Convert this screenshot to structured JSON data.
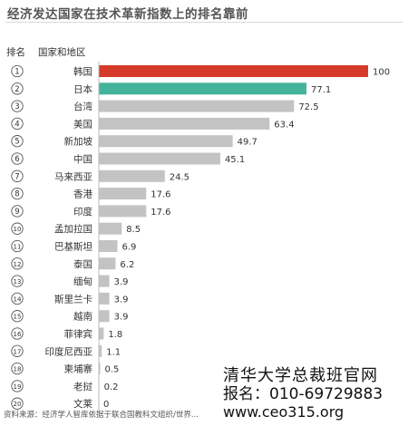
{
  "title": "经济发达国家在技术革新指数上的排名靠前",
  "column_headers": {
    "rank": "排名",
    "country": "国家和地区"
  },
  "footer": "资料来源：经济学人智库依据于联合国教科文组织/世界...",
  "watermark": {
    "line1": "清华大学总裁班官网",
    "line2": "报名：010-69729883",
    "line3": "www.ceo315.org"
  },
  "colors": {
    "first": "#d53a2a",
    "second": "#44b39b",
    "rest": "#c3c3c3"
  },
  "chart_data": {
    "type": "bar",
    "orientation": "horizontal",
    "title": "经济发达国家在技术革新指数上的排名靠前",
    "categories": [
      "韩国",
      "日本",
      "台湾",
      "美国",
      "新加坡",
      "中国",
      "马来西亚",
      "香港",
      "印度",
      "孟加拉国",
      "巴基斯坦",
      "泰国",
      "缅甸",
      "斯里兰卡",
      "越南",
      "菲律宾",
      "印度尼西亚",
      "柬埔寨",
      "老挝",
      "文莱"
    ],
    "ranks": [
      "1",
      "2",
      "3",
      "4",
      "5",
      "6",
      "7",
      "8",
      "9",
      "10",
      "11",
      "12",
      "13",
      "14",
      "15",
      "16",
      "17",
      "18",
      "19",
      "20"
    ],
    "values": [
      100,
      77.1,
      72.5,
      63.4,
      49.7,
      45.1,
      24.5,
      17.6,
      17.6,
      8.5,
      6.9,
      6.2,
      3.9,
      3.9,
      3.9,
      1.8,
      1.1,
      0.5,
      0.2,
      0
    ],
    "value_labels": [
      "100",
      "77.1",
      "72.5",
      "63.4",
      "49.7",
      "45.1",
      "24.5",
      "17.6",
      "17.6",
      "8.5",
      "6.9",
      "6.2",
      "3.9",
      "3.9",
      "3.9",
      "1.8",
      "1.1",
      "0.5",
      "0.2",
      "0"
    ],
    "xlim": [
      0,
      100
    ],
    "grid": false,
    "legend": "none"
  }
}
